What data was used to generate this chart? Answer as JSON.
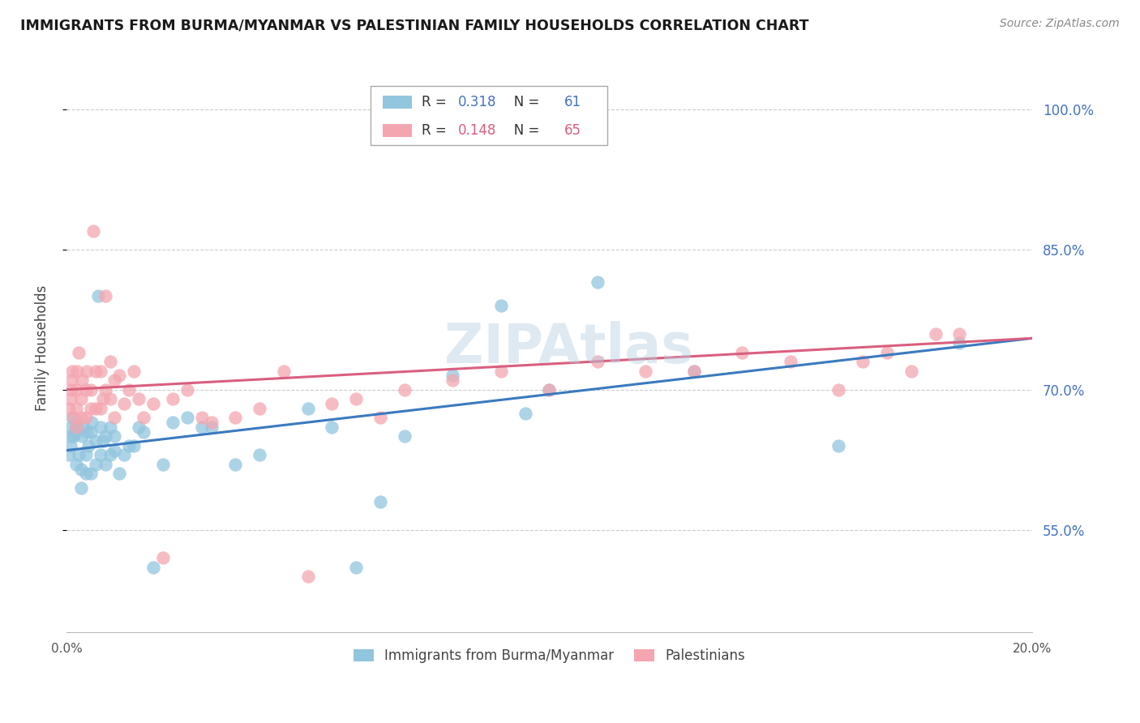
{
  "title": "IMMIGRANTS FROM BURMA/MYANMAR VS PALESTINIAN FAMILY HOUSEHOLDS CORRELATION CHART",
  "source": "Source: ZipAtlas.com",
  "ylabel": "Family Households",
  "ytick_labels": [
    "100.0%",
    "85.0%",
    "70.0%",
    "55.0%"
  ],
  "ytick_values": [
    1.0,
    0.85,
    0.7,
    0.55
  ],
  "ylim": [
    0.44,
    1.05
  ],
  "xlim": [
    0.0,
    0.2
  ],
  "blue_R": 0.318,
  "blue_N": 61,
  "pink_R": 0.148,
  "pink_N": 65,
  "blue_color": "#92c5de",
  "pink_color": "#f4a6b0",
  "blue_line_color": "#3a7abf",
  "pink_line_color": "#d95f7f",
  "watermark": "ZIPAtlas",
  "blue_scatter_x": [
    0.0005,
    0.0008,
    0.001,
    0.001,
    0.0012,
    0.0015,
    0.0018,
    0.002,
    0.002,
    0.0022,
    0.0025,
    0.003,
    0.003,
    0.0032,
    0.0035,
    0.004,
    0.004,
    0.0042,
    0.0045,
    0.005,
    0.005,
    0.0052,
    0.006,
    0.006,
    0.0065,
    0.007,
    0.007,
    0.0075,
    0.008,
    0.008,
    0.009,
    0.009,
    0.01,
    0.01,
    0.011,
    0.012,
    0.013,
    0.014,
    0.015,
    0.016,
    0.018,
    0.02,
    0.022,
    0.025,
    0.028,
    0.03,
    0.035,
    0.04,
    0.05,
    0.055,
    0.06,
    0.065,
    0.07,
    0.08,
    0.09,
    0.095,
    0.1,
    0.11,
    0.13,
    0.16,
    0.185
  ],
  "blue_scatter_y": [
    0.63,
    0.64,
    0.65,
    0.66,
    0.67,
    0.65,
    0.655,
    0.62,
    0.66,
    0.665,
    0.63,
    0.595,
    0.615,
    0.65,
    0.66,
    0.61,
    0.63,
    0.655,
    0.64,
    0.61,
    0.655,
    0.665,
    0.62,
    0.645,
    0.8,
    0.63,
    0.66,
    0.645,
    0.62,
    0.65,
    0.63,
    0.66,
    0.635,
    0.65,
    0.61,
    0.63,
    0.64,
    0.64,
    0.66,
    0.655,
    0.51,
    0.62,
    0.665,
    0.67,
    0.66,
    0.66,
    0.62,
    0.63,
    0.68,
    0.66,
    0.51,
    0.58,
    0.65,
    0.715,
    0.79,
    0.675,
    0.7,
    0.815,
    0.72,
    0.64,
    0.75
  ],
  "pink_scatter_x": [
    0.0005,
    0.0008,
    0.001,
    0.001,
    0.0012,
    0.0015,
    0.002,
    0.002,
    0.002,
    0.0022,
    0.0025,
    0.003,
    0.003,
    0.0032,
    0.004,
    0.004,
    0.0042,
    0.005,
    0.005,
    0.0055,
    0.006,
    0.006,
    0.007,
    0.007,
    0.0075,
    0.008,
    0.008,
    0.009,
    0.009,
    0.01,
    0.01,
    0.011,
    0.012,
    0.013,
    0.014,
    0.015,
    0.016,
    0.018,
    0.02,
    0.022,
    0.025,
    0.028,
    0.03,
    0.035,
    0.04,
    0.045,
    0.05,
    0.055,
    0.06,
    0.065,
    0.07,
    0.08,
    0.09,
    0.1,
    0.11,
    0.12,
    0.13,
    0.14,
    0.15,
    0.16,
    0.165,
    0.17,
    0.175,
    0.18,
    0.185
  ],
  "pink_scatter_y": [
    0.68,
    0.69,
    0.7,
    0.71,
    0.72,
    0.67,
    0.66,
    0.68,
    0.7,
    0.72,
    0.74,
    0.67,
    0.69,
    0.71,
    0.67,
    0.7,
    0.72,
    0.68,
    0.7,
    0.87,
    0.68,
    0.72,
    0.68,
    0.72,
    0.69,
    0.7,
    0.8,
    0.69,
    0.73,
    0.71,
    0.67,
    0.715,
    0.685,
    0.7,
    0.72,
    0.69,
    0.67,
    0.685,
    0.52,
    0.69,
    0.7,
    0.67,
    0.665,
    0.67,
    0.68,
    0.72,
    0.5,
    0.685,
    0.69,
    0.67,
    0.7,
    0.71,
    0.72,
    0.7,
    0.73,
    0.72,
    0.72,
    0.74,
    0.73,
    0.7,
    0.73,
    0.74,
    0.72,
    0.76,
    0.76
  ]
}
